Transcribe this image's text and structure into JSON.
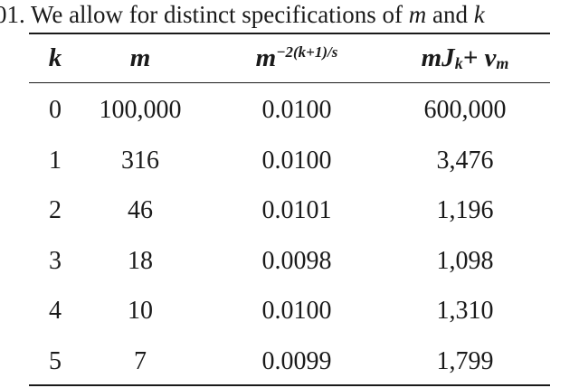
{
  "caption": {
    "prefix": "01. We allow for distinct specifications of ",
    "var1": "m",
    "middle": " and ",
    "var2": "k"
  },
  "table": {
    "headers": {
      "k": "k",
      "m": "m",
      "power_base": "m",
      "power_exp": "−2(k+1)/s",
      "cost_main": "mJ",
      "cost_sub1": "k",
      "cost_plus": " + v",
      "cost_sub2": "m"
    },
    "rows": [
      {
        "k": "0",
        "m": "100,000",
        "power": "0.0100",
        "cost": "600,000"
      },
      {
        "k": "1",
        "m": "316",
        "power": "0.0100",
        "cost": "3,476"
      },
      {
        "k": "2",
        "m": "46",
        "power": "0.0101",
        "cost": "1,196"
      },
      {
        "k": "3",
        "m": "18",
        "power": "0.0098",
        "cost": "1,098"
      },
      {
        "k": "4",
        "m": "10",
        "power": "0.0100",
        "cost": "1,310"
      },
      {
        "k": "5",
        "m": "7",
        "power": "0.0099",
        "cost": "1,799"
      }
    ]
  }
}
